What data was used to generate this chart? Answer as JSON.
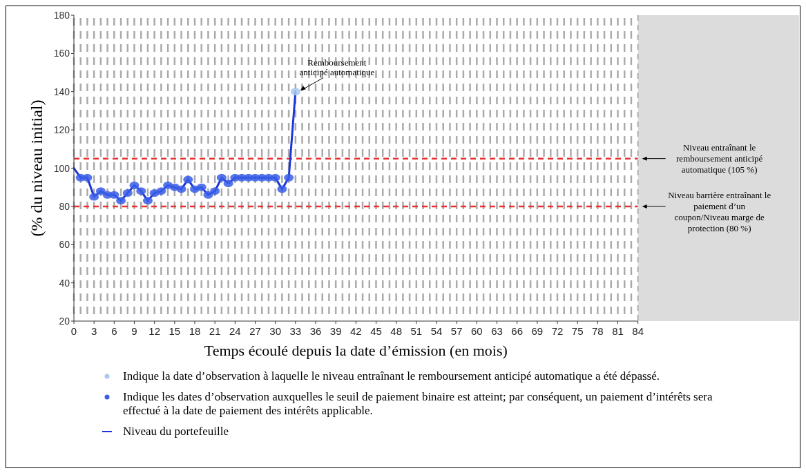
{
  "chart_data": {
    "type": "line",
    "xlabel": "Temps écoulé depuis la date d’émission (en mois)",
    "ylabel": "(% du niveau initial)",
    "xlim": [
      0,
      108
    ],
    "ylim": [
      20,
      180
    ],
    "xticks": [
      0,
      {
        "value": 1,
        "label": null
      },
      {
        "value": 2,
        "label": null
      },
      3,
      {
        "value": 4,
        "label": null
      },
      {
        "value": 5,
        "label": null
      },
      6,
      {
        "value": 7,
        "label": null
      },
      {
        "value": 8,
        "label": null
      },
      9,
      {
        "value": 10,
        "label": null
      },
      {
        "value": 11,
        "label": null
      },
      12,
      {
        "value": 13,
        "label": null
      },
      {
        "value": 14,
        "label": null
      },
      15,
      {
        "value": 16,
        "label": null
      },
      {
        "value": 17,
        "label": null
      },
      18,
      {
        "value": 19,
        "label": null
      },
      {
        "value": 20,
        "label": null
      },
      21,
      {
        "value": 22,
        "label": null
      },
      {
        "value": 23,
        "label": null
      },
      24,
      {
        "value": 25,
        "label": null
      },
      {
        "value": 26,
        "label": null
      },
      27,
      {
        "value": 28,
        "label": null
      },
      {
        "value": 29,
        "label": null
      },
      30,
      {
        "value": 31,
        "label": null
      },
      {
        "value": 32,
        "label": null
      },
      33,
      {
        "value": 34,
        "label": null
      },
      {
        "value": 35,
        "label": null
      },
      36,
      {
        "value": 37,
        "label": null
      },
      {
        "value": 38,
        "label": null
      },
      39,
      {
        "value": 40,
        "label": null
      },
      {
        "value": 41,
        "label": null
      },
      42,
      {
        "value": 43,
        "label": null
      },
      {
        "value": 44,
        "label": null
      },
      45,
      {
        "value": 46,
        "label": null
      },
      {
        "value": 47,
        "label": null
      },
      48,
      {
        "value": 49,
        "label": null
      },
      {
        "value": 50,
        "label": null
      },
      51,
      {
        "value": 52,
        "label": null
      },
      {
        "value": 53,
        "label": null
      },
      54,
      {
        "value": 55,
        "label": null
      },
      {
        "value": 56,
        "label": null
      },
      57,
      {
        "value": 58,
        "label": null
      },
      {
        "value": 59,
        "label": null
      },
      60,
      {
        "value": 61,
        "label": null
      },
      {
        "value": 62,
        "label": null
      },
      63,
      {
        "value": 64,
        "label": null
      },
      {
        "value": 65,
        "label": null
      },
      66,
      {
        "value": 67,
        "label": null
      },
      {
        "value": 68,
        "label": null
      },
      69,
      {
        "value": 70,
        "label": null
      },
      {
        "value": 71,
        "label": null
      },
      72,
      {
        "value": 73,
        "label": null
      },
      {
        "value": 74,
        "label": null
      },
      75,
      {
        "value": 76,
        "label": null
      },
      {
        "value": 77,
        "label": null
      },
      78,
      {
        "value": 79,
        "label": null
      },
      {
        "value": 80,
        "label": null
      },
      81,
      {
        "value": 82,
        "label": null
      },
      {
        "value": 83,
        "label": null
      },
      84
    ],
    "yticks": [
      20,
      40,
      60,
      80,
      100,
      120,
      140,
      160,
      180
    ],
    "grid": "x",
    "legend": "bottom",
    "series": [
      {
        "name": "Indique la date d’observation à laquelle le niveau entraînant le remboursement anticipé automatique a été dépassé.",
        "type": "scatter",
        "marker": "circle",
        "color": "#a8c8f0",
        "x": [
          33
        ],
        "values": [
          140
        ]
      },
      {
        "name": "Indique les dates d’observation auxquelles le seuil de paiement binaire est atteint; par conséquent, un paiement d’intérêts sera effectué à la date de paiement des intérêts applicable.",
        "type": "scatter",
        "marker": "circle",
        "color": "#3a5ee8",
        "x": [
          1,
          2,
          3,
          4,
          5,
          6,
          7,
          8,
          9,
          10,
          11,
          12,
          13,
          14,
          15,
          16,
          17,
          18,
          19,
          20,
          21,
          22,
          23,
          24,
          25,
          26,
          27,
          28,
          29,
          30,
          31,
          32
        ],
        "values": [
          95,
          95,
          85,
          88,
          86,
          86,
          83,
          87,
          91,
          88,
          83,
          87,
          88,
          91,
          90,
          89,
          94,
          89,
          90,
          86,
          88,
          95,
          92,
          95,
          95,
          95,
          95,
          95,
          95,
          95,
          89,
          95
        ]
      },
      {
        "name": "Niveau du portefeuille",
        "color": "#1a35d8",
        "x": [
          0,
          1,
          2,
          3,
          4,
          5,
          6,
          7,
          8,
          9,
          10,
          11,
          12,
          13,
          14,
          15,
          16,
          17,
          18,
          19,
          20,
          21,
          22,
          23,
          24,
          25,
          26,
          27,
          28,
          29,
          30,
          31,
          32,
          33
        ],
        "values": [
          100,
          95,
          95,
          85,
          88,
          86,
          86,
          83,
          87,
          91,
          88,
          83,
          87,
          88,
          91,
          90,
          89,
          94,
          89,
          90,
          86,
          88,
          95,
          92,
          95,
          95,
          95,
          95,
          95,
          95,
          95,
          89,
          95,
          140
        ]
      }
    ],
    "ref_lines": [
      {
        "axis": "x",
        "value": 84,
        "color": "#999999",
        "line_style": "dashed"
      },
      {
        "axis": "y",
        "value": 105,
        "label": "Niveau entraînant le remboursement anticipé automatique (105 %)",
        "color": "#e83030",
        "line_style": "dashed"
      },
      {
        "axis": "y",
        "value": 80,
        "label": "Niveau barrière entraînant le paiement d’un coupon/Niveau marge de protection (80 %)",
        "color": "#e83030",
        "line_style": "dashed"
      }
    ],
    "bands": [
      {
        "axis": "x",
        "from": 84,
        "to": 108,
        "color": "#dcdcdc"
      }
    ],
    "annotations": [
      {
        "text": "Remboursement anticipé automatique",
        "x": 33,
        "y": 140
      }
    ]
  }
}
